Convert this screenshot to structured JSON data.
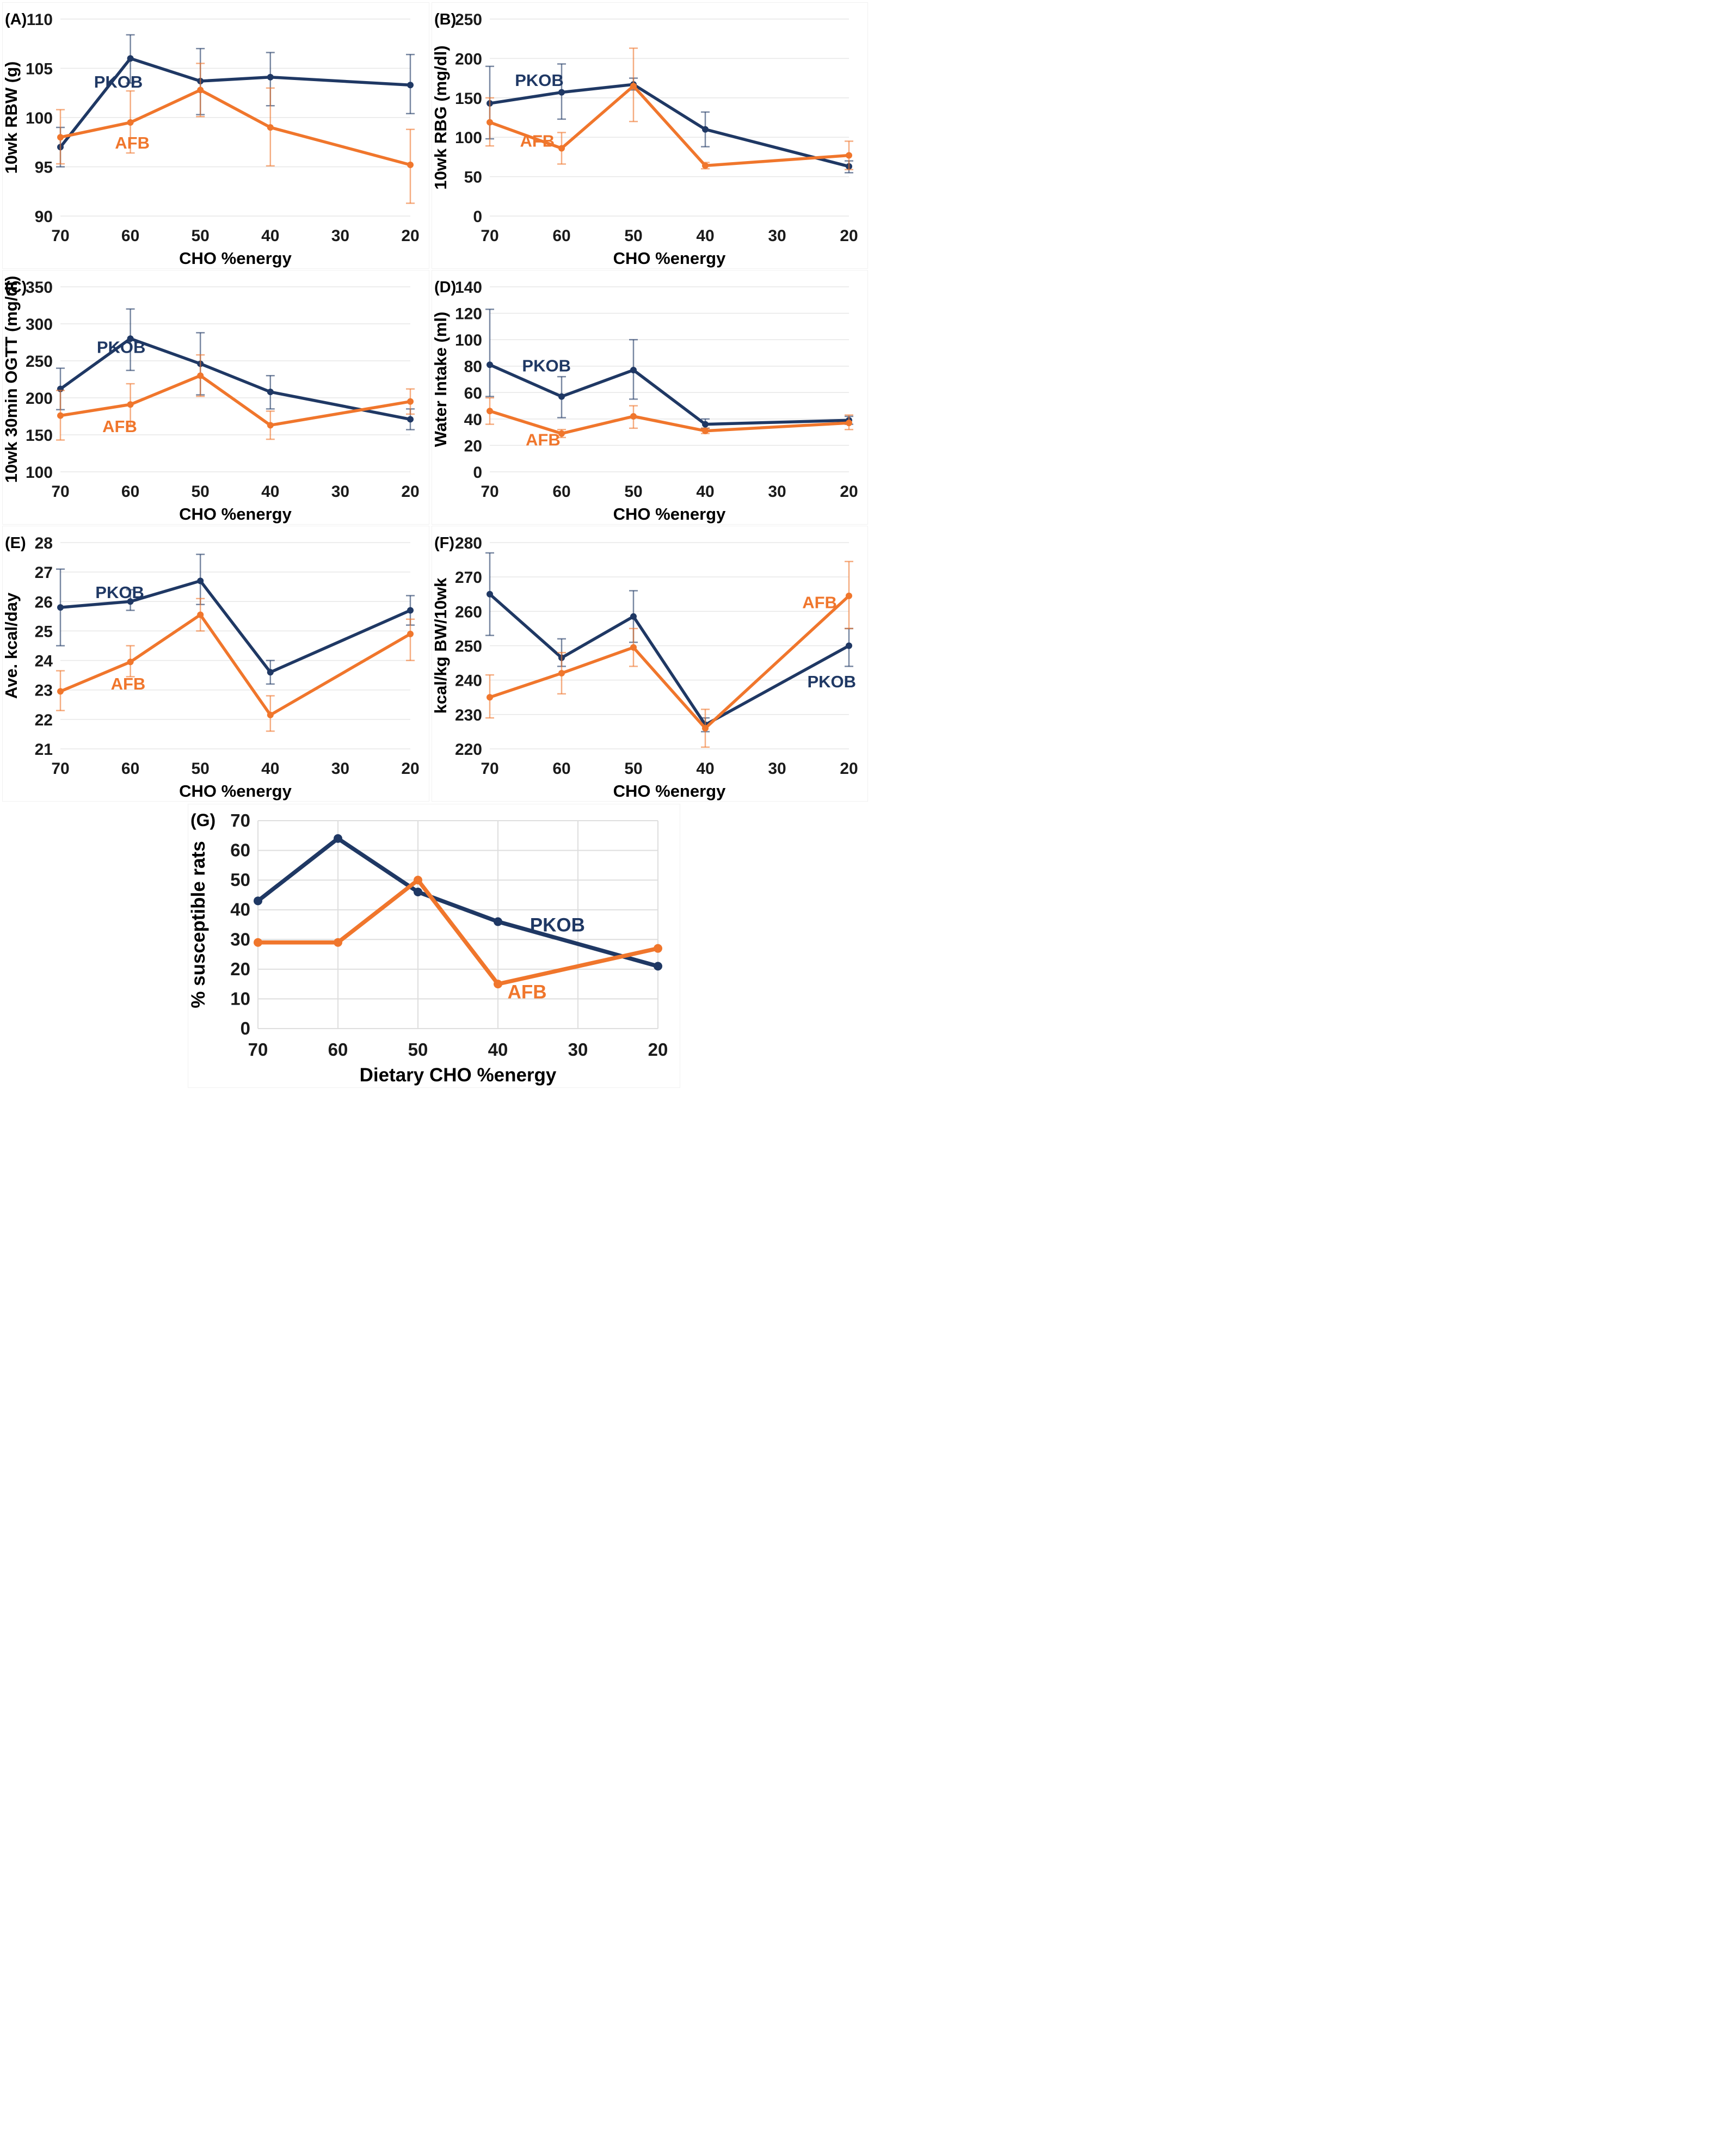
{
  "figure": {
    "x_tick_labels": [
      "70",
      "60",
      "50",
      "40",
      "30",
      "20"
    ],
    "colors": {
      "PKOB": "#1f3864",
      "AFB": "#f0762c",
      "grid": "#e7e7e7",
      "grid_g": "#dedede",
      "tick_text": "#1a1a1a",
      "title_text": "#000000"
    },
    "chart_data": "see panels[] — each panel holds the plotted series values",
    "panels": [
      {
        "id": "a",
        "type": "line",
        "letter": "(A)",
        "ylabel": "10wk RBW (g)",
        "xlabel": "CHO %energy",
        "ymin": 90,
        "ymax": 110,
        "yticks": [
          90,
          95,
          100,
          105,
          110
        ],
        "vgrid": false,
        "series": [
          {
            "name": "PKOB",
            "x": [
              70,
              60,
              50,
              40,
              20
            ],
            "y": [
              97,
              106,
              103.7,
              104.1,
              103.3
            ],
            "err_lo": [
              95,
              103.5,
              100.3,
              101.2,
              100.4
            ],
            "err_hi": [
              99,
              108.4,
              107,
              106.6,
              106.4
            ],
            "label": {
              "slot": 0.48,
              "y": 103.6
            }
          },
          {
            "name": "AFB",
            "x": [
              70,
              60,
              50,
              40,
              20
            ],
            "y": [
              98,
              99.5,
              102.8,
              99,
              95.2
            ],
            "err_lo": [
              95.3,
              96.4,
              100.1,
              95.1,
              91.3
            ],
            "err_hi": [
              100.8,
              102.7,
              105.5,
              103,
              98.8
            ],
            "label": {
              "slot": 0.78,
              "y": 97.4
            }
          }
        ]
      },
      {
        "id": "b",
        "type": "line",
        "letter": "(B)",
        "ylabel": "10wk RBG (mg/dl)",
        "xlabel": "CHO %energy",
        "ymin": 0,
        "ymax": 250,
        "yticks": [
          0,
          50,
          100,
          150,
          200,
          250
        ],
        "vgrid": false,
        "series": [
          {
            "name": "PKOB",
            "x": [
              70,
              60,
              50,
              40,
              20
            ],
            "y": [
              143,
              157,
              167,
              110,
              63
            ],
            "err_lo": [
              98,
              123,
              160,
              88,
              55
            ],
            "err_hi": [
              190,
              193,
              175,
              132,
              70
            ],
            "label": {
              "slot": 0.35,
              "y": 172
            }
          },
          {
            "name": "AFB",
            "x": [
              70,
              60,
              50,
              40,
              20
            ],
            "y": [
              119,
              86,
              165,
              64,
              77
            ],
            "err_lo": [
              89,
              66,
              120,
              60,
              59
            ],
            "err_hi": [
              150,
              106,
              213,
              68,
              95
            ],
            "label": {
              "slot": 0.42,
              "y": 95
            }
          }
        ]
      },
      {
        "id": "c",
        "type": "line",
        "letter": "(C)",
        "ylabel": "10wk 30min OGTT (mg/dl)",
        "xlabel": "CHO %energy",
        "ymin": 100,
        "ymax": 350,
        "yticks": [
          100,
          150,
          200,
          250,
          300,
          350
        ],
        "vgrid": false,
        "series": [
          {
            "name": "PKOB",
            "x": [
              70,
              60,
              50,
              40,
              20
            ],
            "y": [
              212,
              280,
              246,
              208,
              171
            ],
            "err_lo": [
              184,
              237,
              204,
              185,
              157
            ],
            "err_hi": [
              240,
              320,
              288,
              230,
              185
            ],
            "label": {
              "slot": 0.52,
              "y": 268
            }
          },
          {
            "name": "AFB",
            "x": [
              70,
              60,
              50,
              40,
              20
            ],
            "y": [
              176,
              191,
              230,
              163,
              195
            ],
            "err_lo": [
              143,
              163,
              202,
              144,
              178
            ],
            "err_hi": [
              210,
              219,
              258,
              182,
              212
            ],
            "label": {
              "slot": 0.6,
              "y": 161
            }
          }
        ]
      },
      {
        "id": "d",
        "type": "line",
        "letter": "(D)",
        "ylabel": "Water Intake (ml)",
        "xlabel": "CHO %energy",
        "ymin": 0,
        "ymax": 140,
        "yticks": [
          0,
          20,
          40,
          60,
          80,
          100,
          120,
          140
        ],
        "vgrid": false,
        "series": [
          {
            "name": "PKOB",
            "x": [
              70,
              60,
              50,
              40,
              20
            ],
            "y": [
              81,
              57,
              77,
              36,
              39
            ],
            "err_lo": [
              57,
              41,
              55,
              33,
              36
            ],
            "err_hi": [
              123,
              72,
              100,
              40,
              42
            ],
            "label": {
              "slot": 0.45,
              "y": 80
            }
          },
          {
            "name": "AFB",
            "x": [
              70,
              60,
              50,
              40,
              20
            ],
            "y": [
              46,
              29,
              42,
              31,
              37
            ],
            "err_lo": [
              36,
              26,
              33,
              29,
              32
            ],
            "err_hi": [
              56,
              32,
              50,
              33,
              43
            ],
            "label": {
              "slot": 0.5,
              "y": 24
            }
          }
        ]
      },
      {
        "id": "e",
        "type": "line",
        "letter": "(E)",
        "ylabel": "Ave. kcal/day",
        "xlabel": "CHO %energy",
        "ymin": 21,
        "ymax": 28,
        "yticks": [
          21,
          22,
          23,
          24,
          25,
          26,
          27,
          28
        ],
        "vgrid": false,
        "series": [
          {
            "name": "PKOB",
            "x": [
              70,
              60,
              50,
              40,
              20
            ],
            "y": [
              25.8,
              26,
              26.7,
              23.6,
              25.7
            ],
            "err_lo": [
              24.5,
              25.7,
              25.9,
              23.2,
              25.2
            ],
            "err_hi": [
              27.1,
              26.4,
              27.6,
              24,
              26.2
            ],
            "label": {
              "slot": 0.5,
              "y": 26.3
            }
          },
          {
            "name": "AFB",
            "x": [
              70,
              60,
              50,
              40,
              20
            ],
            "y": [
              22.95,
              23.95,
              25.55,
              22.15,
              24.9
            ],
            "err_lo": [
              22.3,
              23.45,
              25,
              21.6,
              24
            ],
            "err_hi": [
              23.65,
              24.5,
              26.1,
              22.8,
              25.4
            ],
            "label": {
              "slot": 0.72,
              "y": 23.2
            }
          }
        ]
      },
      {
        "id": "f",
        "type": "line",
        "letter": "(F)",
        "ylabel": "kcal/kg BW/10wk",
        "xlabel": "CHO %energy",
        "ymin": 220,
        "ymax": 280,
        "yticks": [
          220,
          230,
          240,
          250,
          260,
          270,
          280
        ],
        "vgrid": false,
        "series": [
          {
            "name": "PKOB",
            "x": [
              70,
              60,
              50,
              40,
              20
            ],
            "y": [
              265,
              246.5,
              258.5,
              227,
              250
            ],
            "err_lo": [
              253,
              244,
              251,
              225,
              244
            ],
            "err_hi": [
              277,
              252,
              266,
              229,
              255
            ],
            "label": {
              "slot": 4.42,
              "y": 239.5
            }
          },
          {
            "name": "AFB",
            "x": [
              70,
              60,
              50,
              40,
              20
            ],
            "y": [
              235,
              242,
              249.5,
              226,
              264.5
            ],
            "err_lo": [
              229,
              236,
              244,
              220.5,
              255
            ],
            "err_hi": [
              241.5,
              248,
              255,
              231.5,
              274.5
            ],
            "label": {
              "slot": 4.35,
              "y": 262.5
            }
          }
        ]
      },
      {
        "id": "g",
        "type": "line",
        "letter": "(G)",
        "ylabel": "% susceptible rats",
        "xlabel": "Dietary CHO %energy",
        "ymin": 0,
        "ymax": 70,
        "yticks": [
          0,
          10,
          20,
          30,
          40,
          50,
          60,
          70
        ],
        "vgrid": true,
        "series": [
          {
            "name": "PKOB",
            "x": [
              70,
              60,
              50,
              40,
              20
            ],
            "y": [
              43,
              64,
              46,
              36,
              21
            ],
            "err_lo": null,
            "err_hi": null,
            "label": {
              "slot": 3.4,
              "y": 34.5
            }
          },
          {
            "name": "AFB",
            "x": [
              70,
              60,
              50,
              40,
              20
            ],
            "y": [
              29,
              29,
              50,
              15,
              27
            ],
            "err_lo": null,
            "err_hi": null,
            "label": {
              "slot": 3.12,
              "y": 12
            }
          }
        ]
      }
    ]
  }
}
